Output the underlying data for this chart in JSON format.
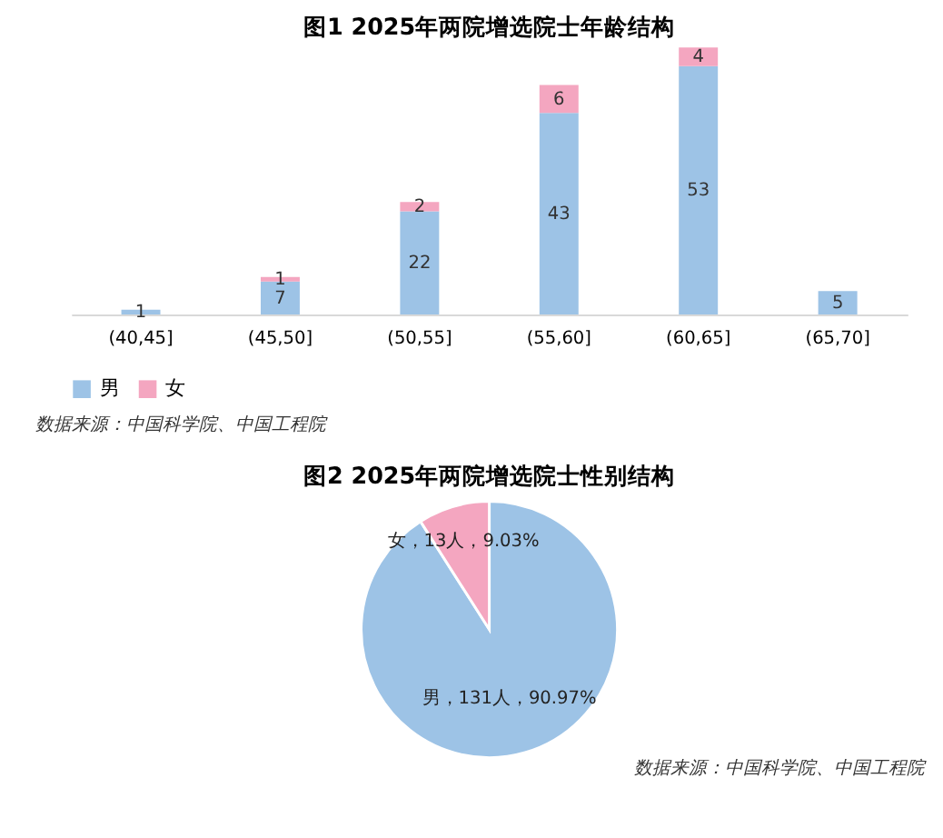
{
  "chart_data": [
    {
      "type": "bar",
      "title": "图1 2025年两院增选院士年龄结构",
      "categories": [
        "(40,45]",
        "(45,50]",
        "(50,55]",
        "(55,60]",
        "(60,65]",
        "(65,70]"
      ],
      "stacked": true,
      "data_labels": true,
      "legend": "bottom",
      "grid": false,
      "series": [
        {
          "name": "男",
          "color": "#9dc3e6",
          "values": [
            1,
            7,
            22,
            43,
            53,
            5
          ]
        },
        {
          "name": "女",
          "color": "#f4a6c0",
          "values": [
            null,
            1,
            2,
            6,
            4,
            null
          ]
        }
      ],
      "annotations": [
        "数据来源：中国科学院、中国工程院"
      ]
    },
    {
      "type": "pie",
      "title": "图2 2025年两院增选院士性别结构",
      "categories": [
        "男",
        "女"
      ],
      "values": [
        131,
        13
      ],
      "colors": [
        "#9dc3e6",
        "#f4a6c0"
      ],
      "value_labels": [
        "131人，90.97%",
        "13人，9.03%"
      ],
      "legend": false,
      "annotations": [
        "数据来源：中国科学院、中国工程院"
      ]
    }
  ]
}
